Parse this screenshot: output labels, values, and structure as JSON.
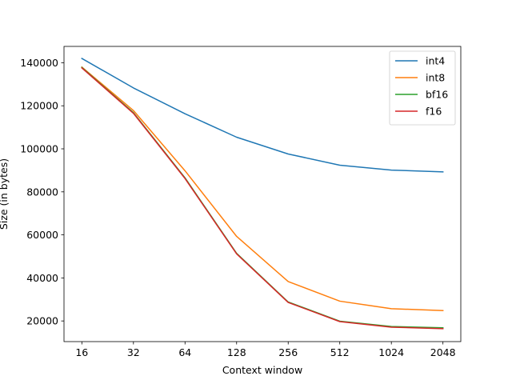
{
  "chart_data": {
    "type": "line",
    "title": "",
    "xlabel": "Context window",
    "ylabel": "Size (in bytes)",
    "x_scale": "log2",
    "x": [
      16,
      32,
      64,
      128,
      256,
      512,
      1024,
      2048
    ],
    "x_tick_labels": [
      "16",
      "32",
      "64",
      "128",
      "256",
      "512",
      "1024",
      "2048"
    ],
    "y_ticks": [
      20000,
      40000,
      60000,
      80000,
      100000,
      120000,
      140000
    ],
    "y_tick_labels": [
      "20000",
      "40000",
      "60000",
      "80000",
      "100000",
      "120000",
      "140000"
    ],
    "ylim": [
      10400,
      147600
    ],
    "grid": false,
    "legend_position": "upper right",
    "series": [
      {
        "name": "int4",
        "color": "#1f77b4",
        "values": [
          142000,
          128300,
          116300,
          105400,
          97600,
          92400,
          90100,
          89300
        ]
      },
      {
        "name": "int8",
        "color": "#ff7f0e",
        "values": [
          138000,
          117800,
          89800,
          59300,
          38300,
          29200,
          25700,
          24800
        ]
      },
      {
        "name": "bf16",
        "color": "#2ca02c",
        "values": [
          137800,
          116800,
          86500,
          51400,
          28800,
          19900,
          17400,
          16800
        ]
      },
      {
        "name": "f16",
        "color": "#d62728",
        "values": [
          137600,
          116500,
          86200,
          51200,
          28600,
          19700,
          17100,
          16400
        ]
      }
    ]
  }
}
